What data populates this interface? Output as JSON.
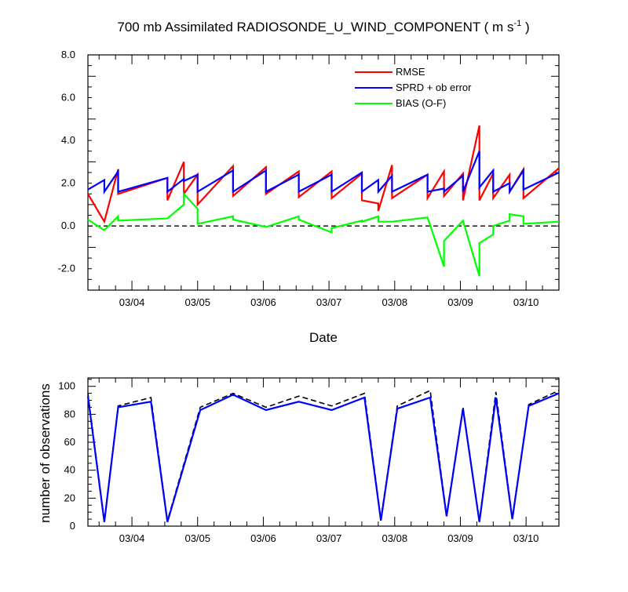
{
  "title": {
    "main": "700 mb Assimilated RADIOSONDE_U_WIND_COMPONENT ( m s",
    "sup": "-1",
    "close": " )"
  },
  "colors": {
    "rmse": "#ff0000",
    "sprd": "#0000ff",
    "bias": "#00ff00",
    "zero": "#000000",
    "obs_used": "#0000ff",
    "obs_poss": "#000000"
  },
  "chart_data": [
    {
      "type": "line",
      "xlabel": "Date",
      "ylabel": "",
      "xlim": [
        3.33,
        10.5
      ],
      "ylim": [
        -3.0,
        8.0
      ],
      "x_ticks": [
        {
          "x": 4,
          "label": "03/04"
        },
        {
          "x": 5,
          "label": "03/05"
        },
        {
          "x": 6,
          "label": "03/06"
        },
        {
          "x": 7,
          "label": "03/07"
        },
        {
          "x": 8,
          "label": "03/08"
        },
        {
          "x": 9,
          "label": "03/09"
        },
        {
          "x": 10,
          "label": "03/10"
        }
      ],
      "y_ticks": [
        {
          "y": -2,
          "label": "-2.0"
        },
        {
          "y": 0,
          "label": "0.0"
        },
        {
          "y": 2,
          "label": "2.0"
        },
        {
          "y": 4,
          "label": "4.0"
        },
        {
          "y": 6,
          "label": "6.0"
        },
        {
          "y": 8,
          "label": "8.0"
        }
      ],
      "legend": {
        "position": "top-right",
        "entries": [
          "RMSE",
          "SPRD + ob error",
          "BIAS (O-F)"
        ]
      },
      "reference_line": {
        "y": 0,
        "style": "dashed"
      },
      "series": [
        {
          "name": "RMSE",
          "color": "#ff0000",
          "points": [
            [
              3.33,
              1.5
            ],
            [
              3.58,
              0.2
            ],
            [
              3.79,
              2.65
            ],
            [
              3.79,
              1.5
            ],
            [
              4.54,
              2.25
            ],
            [
              4.54,
              1.2
            ],
            [
              4.79,
              3.0
            ],
            [
              4.79,
              1.5
            ],
            [
              5.0,
              2.4
            ],
            [
              5.0,
              1.0
            ],
            [
              5.54,
              2.8
            ],
            [
              5.54,
              1.4
            ],
            [
              6.04,
              2.75
            ],
            [
              6.04,
              1.5
            ],
            [
              6.54,
              2.55
            ],
            [
              6.54,
              1.35
            ],
            [
              7.04,
              2.55
            ],
            [
              7.04,
              1.3
            ],
            [
              7.5,
              2.45
            ],
            [
              7.5,
              1.2
            ],
            [
              7.75,
              1.05
            ],
            [
              7.75,
              0.7
            ],
            [
              7.96,
              2.85
            ],
            [
              7.96,
              1.3
            ],
            [
              8.5,
              2.4
            ],
            [
              8.5,
              1.3
            ],
            [
              8.75,
              2.55
            ],
            [
              8.75,
              1.4
            ],
            [
              9.04,
              2.45
            ],
            [
              9.04,
              1.2
            ],
            [
              9.29,
              4.7
            ],
            [
              9.29,
              1.2
            ],
            [
              9.5,
              2.45
            ],
            [
              9.5,
              1.3
            ],
            [
              9.75,
              2.4
            ],
            [
              9.75,
              1.6
            ],
            [
              9.96,
              2.65
            ],
            [
              9.96,
              1.3
            ],
            [
              10.5,
              2.7
            ]
          ]
        },
        {
          "name": "SPRD + ob error",
          "color": "#0000ff",
          "points": [
            [
              3.33,
              1.7
            ],
            [
              3.58,
              2.15
            ],
            [
              3.58,
              1.6
            ],
            [
              3.79,
              2.55
            ],
            [
              3.79,
              1.6
            ],
            [
              4.54,
              2.25
            ],
            [
              4.54,
              1.6
            ],
            [
              4.79,
              2.2
            ],
            [
              4.79,
              2.1
            ],
            [
              5.0,
              2.4
            ],
            [
              5.0,
              1.6
            ],
            [
              5.54,
              2.6
            ],
            [
              5.54,
              1.6
            ],
            [
              6.04,
              2.6
            ],
            [
              6.04,
              1.6
            ],
            [
              6.54,
              2.4
            ],
            [
              6.54,
              1.6
            ],
            [
              7.04,
              2.4
            ],
            [
              7.04,
              1.6
            ],
            [
              7.5,
              2.5
            ],
            [
              7.5,
              1.6
            ],
            [
              7.75,
              2.15
            ],
            [
              7.75,
              1.6
            ],
            [
              7.96,
              2.35
            ],
            [
              7.96,
              1.6
            ],
            [
              8.5,
              2.4
            ],
            [
              8.5,
              1.6
            ],
            [
              8.75,
              1.75
            ],
            [
              8.75,
              1.6
            ],
            [
              9.04,
              2.35
            ],
            [
              9.04,
              1.6
            ],
            [
              9.29,
              3.5
            ],
            [
              9.29,
              1.8
            ],
            [
              9.5,
              2.6
            ],
            [
              9.5,
              1.6
            ],
            [
              9.75,
              2.0
            ],
            [
              9.75,
              1.6
            ],
            [
              9.96,
              2.6
            ],
            [
              9.96,
              1.7
            ],
            [
              10.5,
              2.5
            ]
          ]
        },
        {
          "name": "BIAS (O-F)",
          "color": "#00ff00",
          "points": [
            [
              3.33,
              0.3
            ],
            [
              3.58,
              -0.2
            ],
            [
              3.79,
              0.45
            ],
            [
              3.79,
              0.25
            ],
            [
              4.54,
              0.35
            ],
            [
              4.79,
              1.0
            ],
            [
              4.79,
              1.5
            ],
            [
              5.0,
              0.8
            ],
            [
              5.0,
              0.1
            ],
            [
              5.54,
              0.45
            ],
            [
              5.54,
              0.3
            ],
            [
              6.04,
              -0.05
            ],
            [
              6.54,
              0.45
            ],
            [
              6.54,
              0.3
            ],
            [
              7.04,
              -0.3
            ],
            [
              7.04,
              -0.1
            ],
            [
              7.5,
              0.25
            ],
            [
              7.5,
              0.2
            ],
            [
              7.75,
              0.45
            ],
            [
              7.75,
              0.2
            ],
            [
              7.96,
              0.2
            ],
            [
              8.5,
              0.4
            ],
            [
              8.75,
              -1.9
            ],
            [
              8.75,
              -0.7
            ],
            [
              9.04,
              0.25
            ],
            [
              9.29,
              -2.35
            ],
            [
              9.29,
              -0.8
            ],
            [
              9.5,
              -0.4
            ],
            [
              9.5,
              0.0
            ],
            [
              9.75,
              0.25
            ],
            [
              9.75,
              0.55
            ],
            [
              9.96,
              0.45
            ],
            [
              9.96,
              0.1
            ],
            [
              10.5,
              0.2
            ]
          ]
        }
      ]
    },
    {
      "type": "line",
      "xlabel": "",
      "ylabel": "number of observations",
      "xlim": [
        3.33,
        10.5
      ],
      "ylim": [
        0,
        100
      ],
      "x_ticks": [
        {
          "x": 4,
          "label": "03/04"
        },
        {
          "x": 5,
          "label": "03/05"
        },
        {
          "x": 6,
          "label": "03/06"
        },
        {
          "x": 7,
          "label": "03/07"
        },
        {
          "x": 8,
          "label": "03/08"
        },
        {
          "x": 9,
          "label": "03/09"
        },
        {
          "x": 10,
          "label": "03/10"
        }
      ],
      "y_ticks": [
        {
          "y": 0,
          "label": "0"
        },
        {
          "y": 20,
          "label": "20"
        },
        {
          "y": 40,
          "label": "40"
        },
        {
          "y": 60,
          "label": "60"
        },
        {
          "y": 80,
          "label": "80"
        },
        {
          "y": 100,
          "label": "100"
        }
      ],
      "series": [
        {
          "name": "",
          "color": "#0000ff",
          "style": "solid",
          "x": [
            3.33,
            3.58,
            3.79,
            4.29,
            4.54,
            5.04,
            5.54,
            6.04,
            6.54,
            7.04,
            7.54,
            7.79,
            8.04,
            8.54,
            8.79,
            9.04,
            9.29,
            9.54,
            9.79,
            10.04,
            10.5
          ],
          "values": [
            93,
            3,
            85,
            89,
            3,
            83,
            94,
            83,
            89,
            83,
            92,
            4,
            84,
            92,
            7,
            84,
            3,
            92,
            5,
            86,
            95
          ]
        },
        {
          "name": "",
          "color": "#000000",
          "style": "dashed",
          "x": [
            3.33,
            3.58,
            3.79,
            4.29,
            4.54,
            5.04,
            5.54,
            6.04,
            6.54,
            7.04,
            7.54,
            7.79,
            8.04,
            8.54,
            8.79,
            9.04,
            9.29,
            9.54,
            9.79,
            10.04,
            10.5
          ],
          "values": [
            95,
            4,
            86,
            92,
            4,
            85,
            95,
            85,
            93,
            86,
            95,
            5,
            86,
            97,
            8,
            85,
            4,
            96,
            6,
            87,
            97
          ]
        }
      ]
    }
  ]
}
